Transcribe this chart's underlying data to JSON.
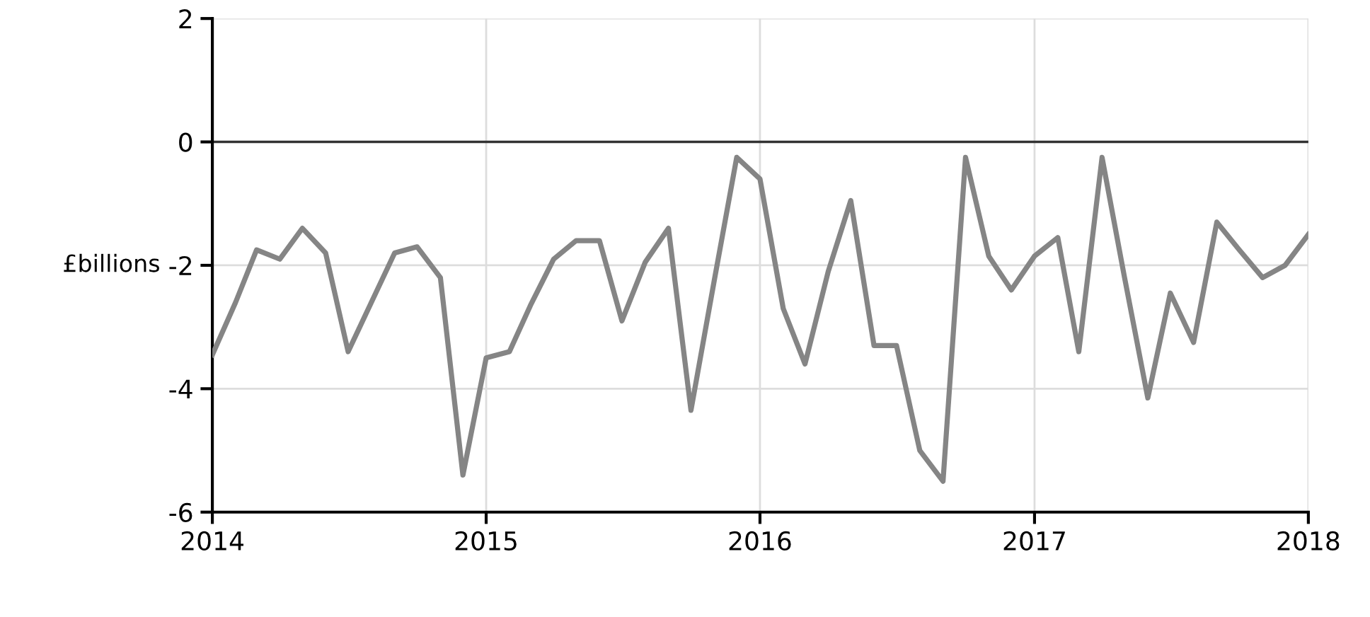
{
  "chart_data": {
    "type": "line",
    "ylabel": "£billions",
    "x": [
      "2014-01",
      "2014-02",
      "2014-03",
      "2014-04",
      "2014-05",
      "2014-06",
      "2014-07",
      "2014-08",
      "2014-09",
      "2014-10",
      "2014-11",
      "2014-12",
      "2015-01",
      "2015-02",
      "2015-03",
      "2015-04",
      "2015-05",
      "2015-06",
      "2015-07",
      "2015-08",
      "2015-09",
      "2015-10",
      "2015-11",
      "2015-12",
      "2016-01",
      "2016-02",
      "2016-03",
      "2016-04",
      "2016-05",
      "2016-06",
      "2016-07",
      "2016-08",
      "2016-09",
      "2016-10",
      "2016-11",
      "2016-12",
      "2017-01",
      "2017-02",
      "2017-03",
      "2017-04",
      "2017-05",
      "2017-06",
      "2017-07",
      "2017-08",
      "2017-09",
      "2017-10",
      "2017-11",
      "2017-12",
      "2018-01"
    ],
    "series": [
      {
        "color": "#858585",
        "values": [
          -3.45,
          -2.6,
          -1.75,
          -1.9,
          -1.4,
          -1.8,
          -3.4,
          -2.6,
          -1.8,
          -1.7,
          -2.2,
          -5.4,
          -3.5,
          -3.4,
          -2.65,
          -1.9,
          -1.6,
          -1.6,
          -2.9,
          -1.95,
          -1.4,
          -4.35,
          -2.25,
          -0.25,
          -0.6,
          -2.7,
          -3.6,
          -2.1,
          -0.95,
          -3.3,
          -3.3,
          -5.0,
          -5.5,
          -0.25,
          -1.85,
          -2.4,
          -1.85,
          -1.55,
          -3.4,
          -0.25,
          -2.2,
          -4.15,
          -2.45,
          -3.25,
          -1.3,
          -1.75,
          -2.2,
          -2.0,
          -1.5
        ]
      }
    ],
    "xlim": [
      "2014",
      "2018"
    ],
    "xticks": [
      "2014",
      "2015",
      "2016",
      "2017",
      "2018"
    ],
    "ylim": [
      -6,
      2
    ],
    "yticks": [
      -6,
      -4,
      -2,
      0,
      2
    ],
    "ref_lines": [
      {
        "axis": "y",
        "value": 0,
        "color": "#333333"
      }
    ],
    "grid": true,
    "marker": "none",
    "line_style": "solid"
  }
}
